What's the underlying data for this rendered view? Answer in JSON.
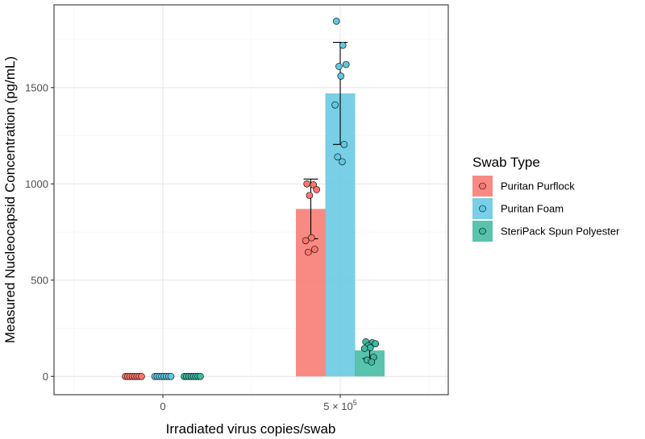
{
  "chart_data": {
    "type": "bar",
    "title": "",
    "xlabel": "Irradiated virus copies/swab",
    "ylabel": "Measured Nucleocapsid Concentration (pg/mL)",
    "categories": [
      "0",
      "5 × 10^5"
    ],
    "category_labels": [
      {
        "base": "0",
        "sup": ""
      },
      {
        "base": "5 × 10",
        "sup": "5"
      }
    ],
    "ylim": [
      -95,
      1930
    ],
    "yticks": [
      0,
      500,
      1000,
      1500
    ],
    "grid": true,
    "legend": {
      "title": "Swab Type",
      "position": "right"
    },
    "series": [
      {
        "name": "Puritan Purflock",
        "color": "#F8766D",
        "values": [
          0,
          870
        ],
        "errors": [
          0,
          155
        ],
        "points": [
          [
            0,
            0,
            0,
            0,
            0,
            0,
            0,
            0
          ],
          [
            1000,
            995,
            970,
            940,
            720,
            705,
            660,
            645
          ]
        ]
      },
      {
        "name": "Puritan Foam",
        "color": "#61C7E0",
        "values": [
          0,
          1470
        ],
        "errors": [
          0,
          265
        ],
        "points": [
          [
            0,
            0,
            0,
            0,
            0,
            0,
            0,
            0
          ],
          [
            1845,
            1720,
            1620,
            1610,
            1560,
            1410,
            1205,
            1140,
            1115
          ]
        ]
      },
      {
        "name": "SteriPack Spun Polyester",
        "color": "#3DB9A0",
        "values": [
          0,
          135
        ],
        "errors": [
          0,
          42
        ],
        "points": [
          [
            0,
            0,
            0,
            0,
            0,
            0,
            0,
            0
          ],
          [
            180,
            175,
            170,
            160,
            150,
            145,
            100,
            85,
            75
          ]
        ]
      }
    ]
  }
}
